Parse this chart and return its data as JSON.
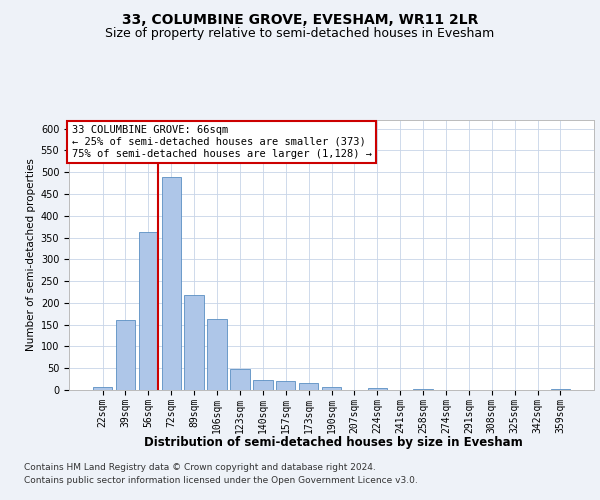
{
  "title": "33, COLUMBINE GROVE, EVESHAM, WR11 2LR",
  "subtitle": "Size of property relative to semi-detached houses in Evesham",
  "xlabel": "Distribution of semi-detached houses by size in Evesham",
  "ylabel": "Number of semi-detached properties",
  "bar_labels": [
    "22sqm",
    "39sqm",
    "56sqm",
    "72sqm",
    "89sqm",
    "106sqm",
    "123sqm",
    "140sqm",
    "157sqm",
    "173sqm",
    "190sqm",
    "207sqm",
    "224sqm",
    "241sqm",
    "258sqm",
    "274sqm",
    "291sqm",
    "308sqm",
    "325sqm",
    "342sqm",
    "359sqm"
  ],
  "bar_values": [
    8,
    160,
    363,
    490,
    218,
    163,
    48,
    22,
    20,
    15,
    7,
    0,
    5,
    0,
    3,
    0,
    0,
    0,
    0,
    0,
    3
  ],
  "bar_color": "#aec6e8",
  "bar_edge_color": "#5a8fc2",
  "annotation_box_text": "33 COLUMBINE GROVE: 66sqm\n← 25% of semi-detached houses are smaller (373)\n75% of semi-detached houses are larger (1,128) →",
  "ylim": [
    0,
    620
  ],
  "yticks": [
    0,
    50,
    100,
    150,
    200,
    250,
    300,
    350,
    400,
    450,
    500,
    550,
    600
  ],
  "footer_line1": "Contains HM Land Registry data © Crown copyright and database right 2024.",
  "footer_line2": "Contains public sector information licensed under the Open Government Licence v3.0.",
  "bg_color": "#eef2f8",
  "plot_bg_color": "#ffffff",
  "grid_color": "#c8d4e8",
  "annotation_box_color": "#ffffff",
  "annotation_box_edge_color": "#cc0000",
  "red_line_color": "#cc0000",
  "title_fontsize": 10,
  "subtitle_fontsize": 9,
  "xlabel_fontsize": 8.5,
  "ylabel_fontsize": 7.5,
  "tick_fontsize": 7,
  "annotation_fontsize": 7.5,
  "footer_fontsize": 6.5
}
